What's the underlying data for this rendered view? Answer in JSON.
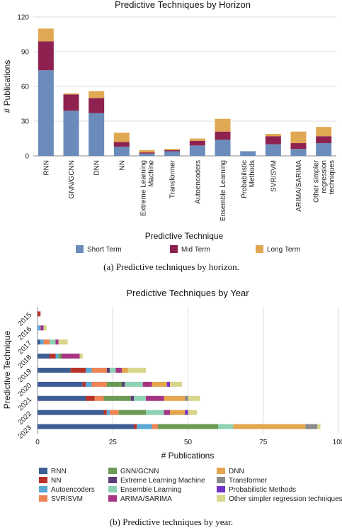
{
  "chart_data": [
    {
      "type": "bar",
      "stacked": true,
      "orientation": "vertical",
      "title": "Predictive Techniques by Horizon",
      "xlabel": "Predictive Technique",
      "ylabel": "# Publications",
      "ylim": [
        0,
        120
      ],
      "yticks": [
        0,
        30,
        60,
        90,
        120
      ],
      "grid": true,
      "legend_position": "bottom",
      "caption": "(a) Predictive techniques by horizon.",
      "categories": [
        "RNN",
        "GNN/GCNN",
        "DNN",
        "NN",
        "Extreme Learning Machine",
        "Transformer",
        "Autoencoders",
        "Ensemble Learning",
        "Probabilistic Methods",
        "SVR/SVM",
        "ARIMA/SARIMA",
        "Other simpler regression techniques"
      ],
      "series": [
        {
          "name": "Short Term",
          "color": "#6b8cba",
          "values": [
            74,
            39,
            37,
            8,
            2,
            4,
            9,
            14,
            4,
            10,
            6,
            11
          ]
        },
        {
          "name": "Mid Term",
          "color": "#8e2150",
          "values": [
            25,
            14,
            13,
            4,
            1,
            1,
            4,
            7,
            0,
            7,
            5,
            6
          ]
        },
        {
          "name": "Long Term",
          "color": "#e0a852",
          "values": [
            11,
            1,
            6,
            8,
            2,
            1,
            2,
            11,
            0,
            2,
            10,
            8
          ]
        }
      ]
    },
    {
      "type": "bar",
      "stacked": true,
      "orientation": "horizontal",
      "title": "Predictive Techniques by Year",
      "xlabel": "# Publications",
      "ylabel": "Predictive Technique",
      "xlim": [
        0,
        100
      ],
      "xticks": [
        0,
        25,
        50,
        75,
        100
      ],
      "grid": true,
      "legend_position": "bottom",
      "caption": "(b) Predictive techniques by year.",
      "categories": [
        "2015",
        "2016",
        "2017",
        "2018",
        "2019",
        "2020",
        "2021",
        "2022",
        "2023"
      ],
      "series": [
        {
          "name": "RNN",
          "color": "#3e5d94",
          "values": [
            0,
            0,
            1,
            4,
            11,
            15,
            16,
            22,
            32
          ]
        },
        {
          "name": "NN",
          "color": "#b8322a",
          "values": [
            1,
            0,
            0,
            2,
            5,
            1,
            3,
            1,
            1
          ]
        },
        {
          "name": "Autoencoders",
          "color": "#58a9d4",
          "values": [
            0,
            1,
            1,
            1,
            2,
            2,
            0,
            1,
            5
          ]
        },
        {
          "name": "SVR/SVM",
          "color": "#ef8453",
          "values": [
            0,
            0,
            2,
            0,
            5,
            5,
            3,
            3,
            2
          ]
        },
        {
          "name": "GNN/GCNN",
          "color": "#6b9a54",
          "values": [
            0,
            0,
            0,
            1,
            0,
            5,
            9,
            9,
            20
          ]
        },
        {
          "name": "Extreme Learning Machine",
          "color": "#5c3d78",
          "values": [
            0,
            0,
            0,
            0,
            1,
            1,
            1,
            0,
            0
          ]
        },
        {
          "name": "Ensemble Learning",
          "color": "#8dd2b4",
          "values": [
            0,
            0,
            2,
            0,
            2,
            6,
            4,
            6,
            5
          ]
        },
        {
          "name": "ARIMA/SARIMA",
          "color": "#a63384",
          "values": [
            0,
            1,
            1,
            6,
            2,
            3,
            6,
            2,
            0
          ]
        },
        {
          "name": "DNN",
          "color": "#e3a64e",
          "values": [
            0,
            0,
            0,
            0,
            2,
            5,
            7,
            5,
            24
          ]
        },
        {
          "name": "Transformer",
          "color": "#8a8a8a",
          "values": [
            0,
            0,
            0,
            0,
            0,
            0,
            1,
            0,
            4
          ]
        },
        {
          "name": "Probabilistic Methods",
          "color": "#7433c9",
          "values": [
            0,
            0,
            0,
            0,
            0,
            1,
            0,
            1,
            0
          ]
        },
        {
          "name": "Other simpler regression techniques",
          "color": "#d8d68a",
          "values": [
            0,
            1,
            3,
            1,
            6,
            4,
            4,
            3,
            1
          ]
        }
      ]
    }
  ]
}
